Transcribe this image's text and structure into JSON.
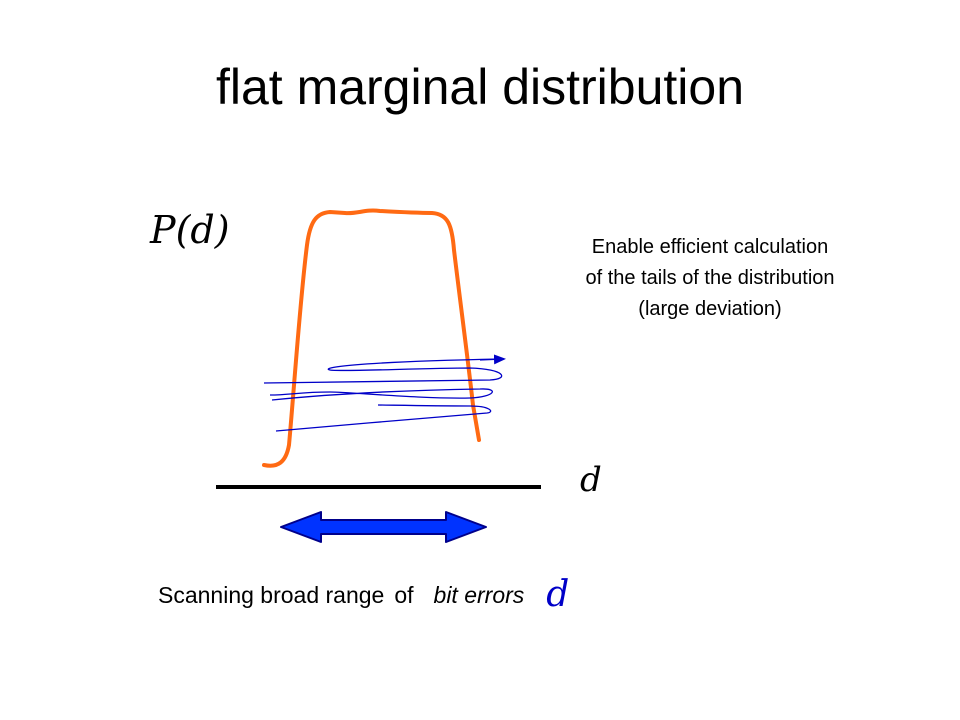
{
  "slide": {
    "title": "flat marginal distribution",
    "y_symbol": "P(d)",
    "x_symbol": "d",
    "note_lines": [
      "Enable efficient calculation",
      "of the tails of the distribution",
      "(large deviation)"
    ],
    "caption": {
      "part1": "Scanning broad range",
      "part2": "of",
      "part3": "bit errors",
      "variable": "d"
    },
    "colors": {
      "curve": "#ff6a13",
      "scan_path": "#0000c8",
      "range_arrow": "#0033ff",
      "axis": "#000000"
    }
  }
}
